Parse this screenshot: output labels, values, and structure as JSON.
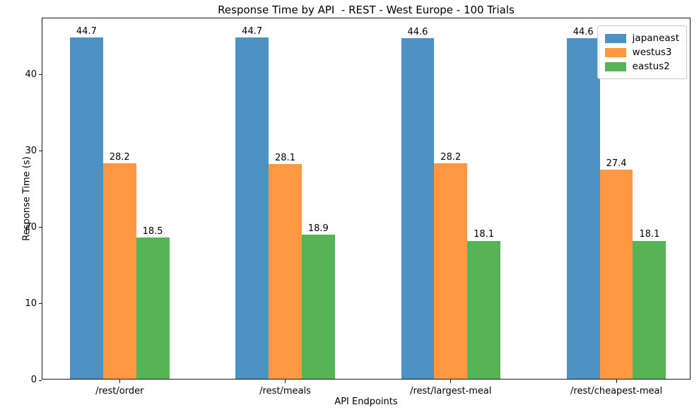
{
  "chart_data": {
    "type": "bar",
    "title": "Response Time by API  - REST - West Europe - 100 Trials",
    "xlabel": "API Endpoints",
    "ylabel": "Response Time (s)",
    "categories": [
      "/rest/order",
      "/rest/meals",
      "/rest/largest-meal",
      "/rest/cheapest-meal"
    ],
    "series": [
      {
        "name": "japaneast",
        "color": "#4C92C3",
        "values": [
          44.7,
          44.7,
          44.6,
          44.6
        ]
      },
      {
        "name": "westus3",
        "color": "#FF9841",
        "values": [
          28.2,
          28.1,
          28.2,
          27.4
        ]
      },
      {
        "name": "eastus2",
        "color": "#56B356",
        "values": [
          18.5,
          18.9,
          18.1,
          18.1
        ]
      }
    ],
    "yticks": [
      0,
      10,
      20,
      30,
      40
    ],
    "ylim": [
      0,
      47.4
    ],
    "bar_value_labels": true,
    "legend_position": "upper right",
    "grid": false,
    "spine_color": "#1a1a1a"
  }
}
